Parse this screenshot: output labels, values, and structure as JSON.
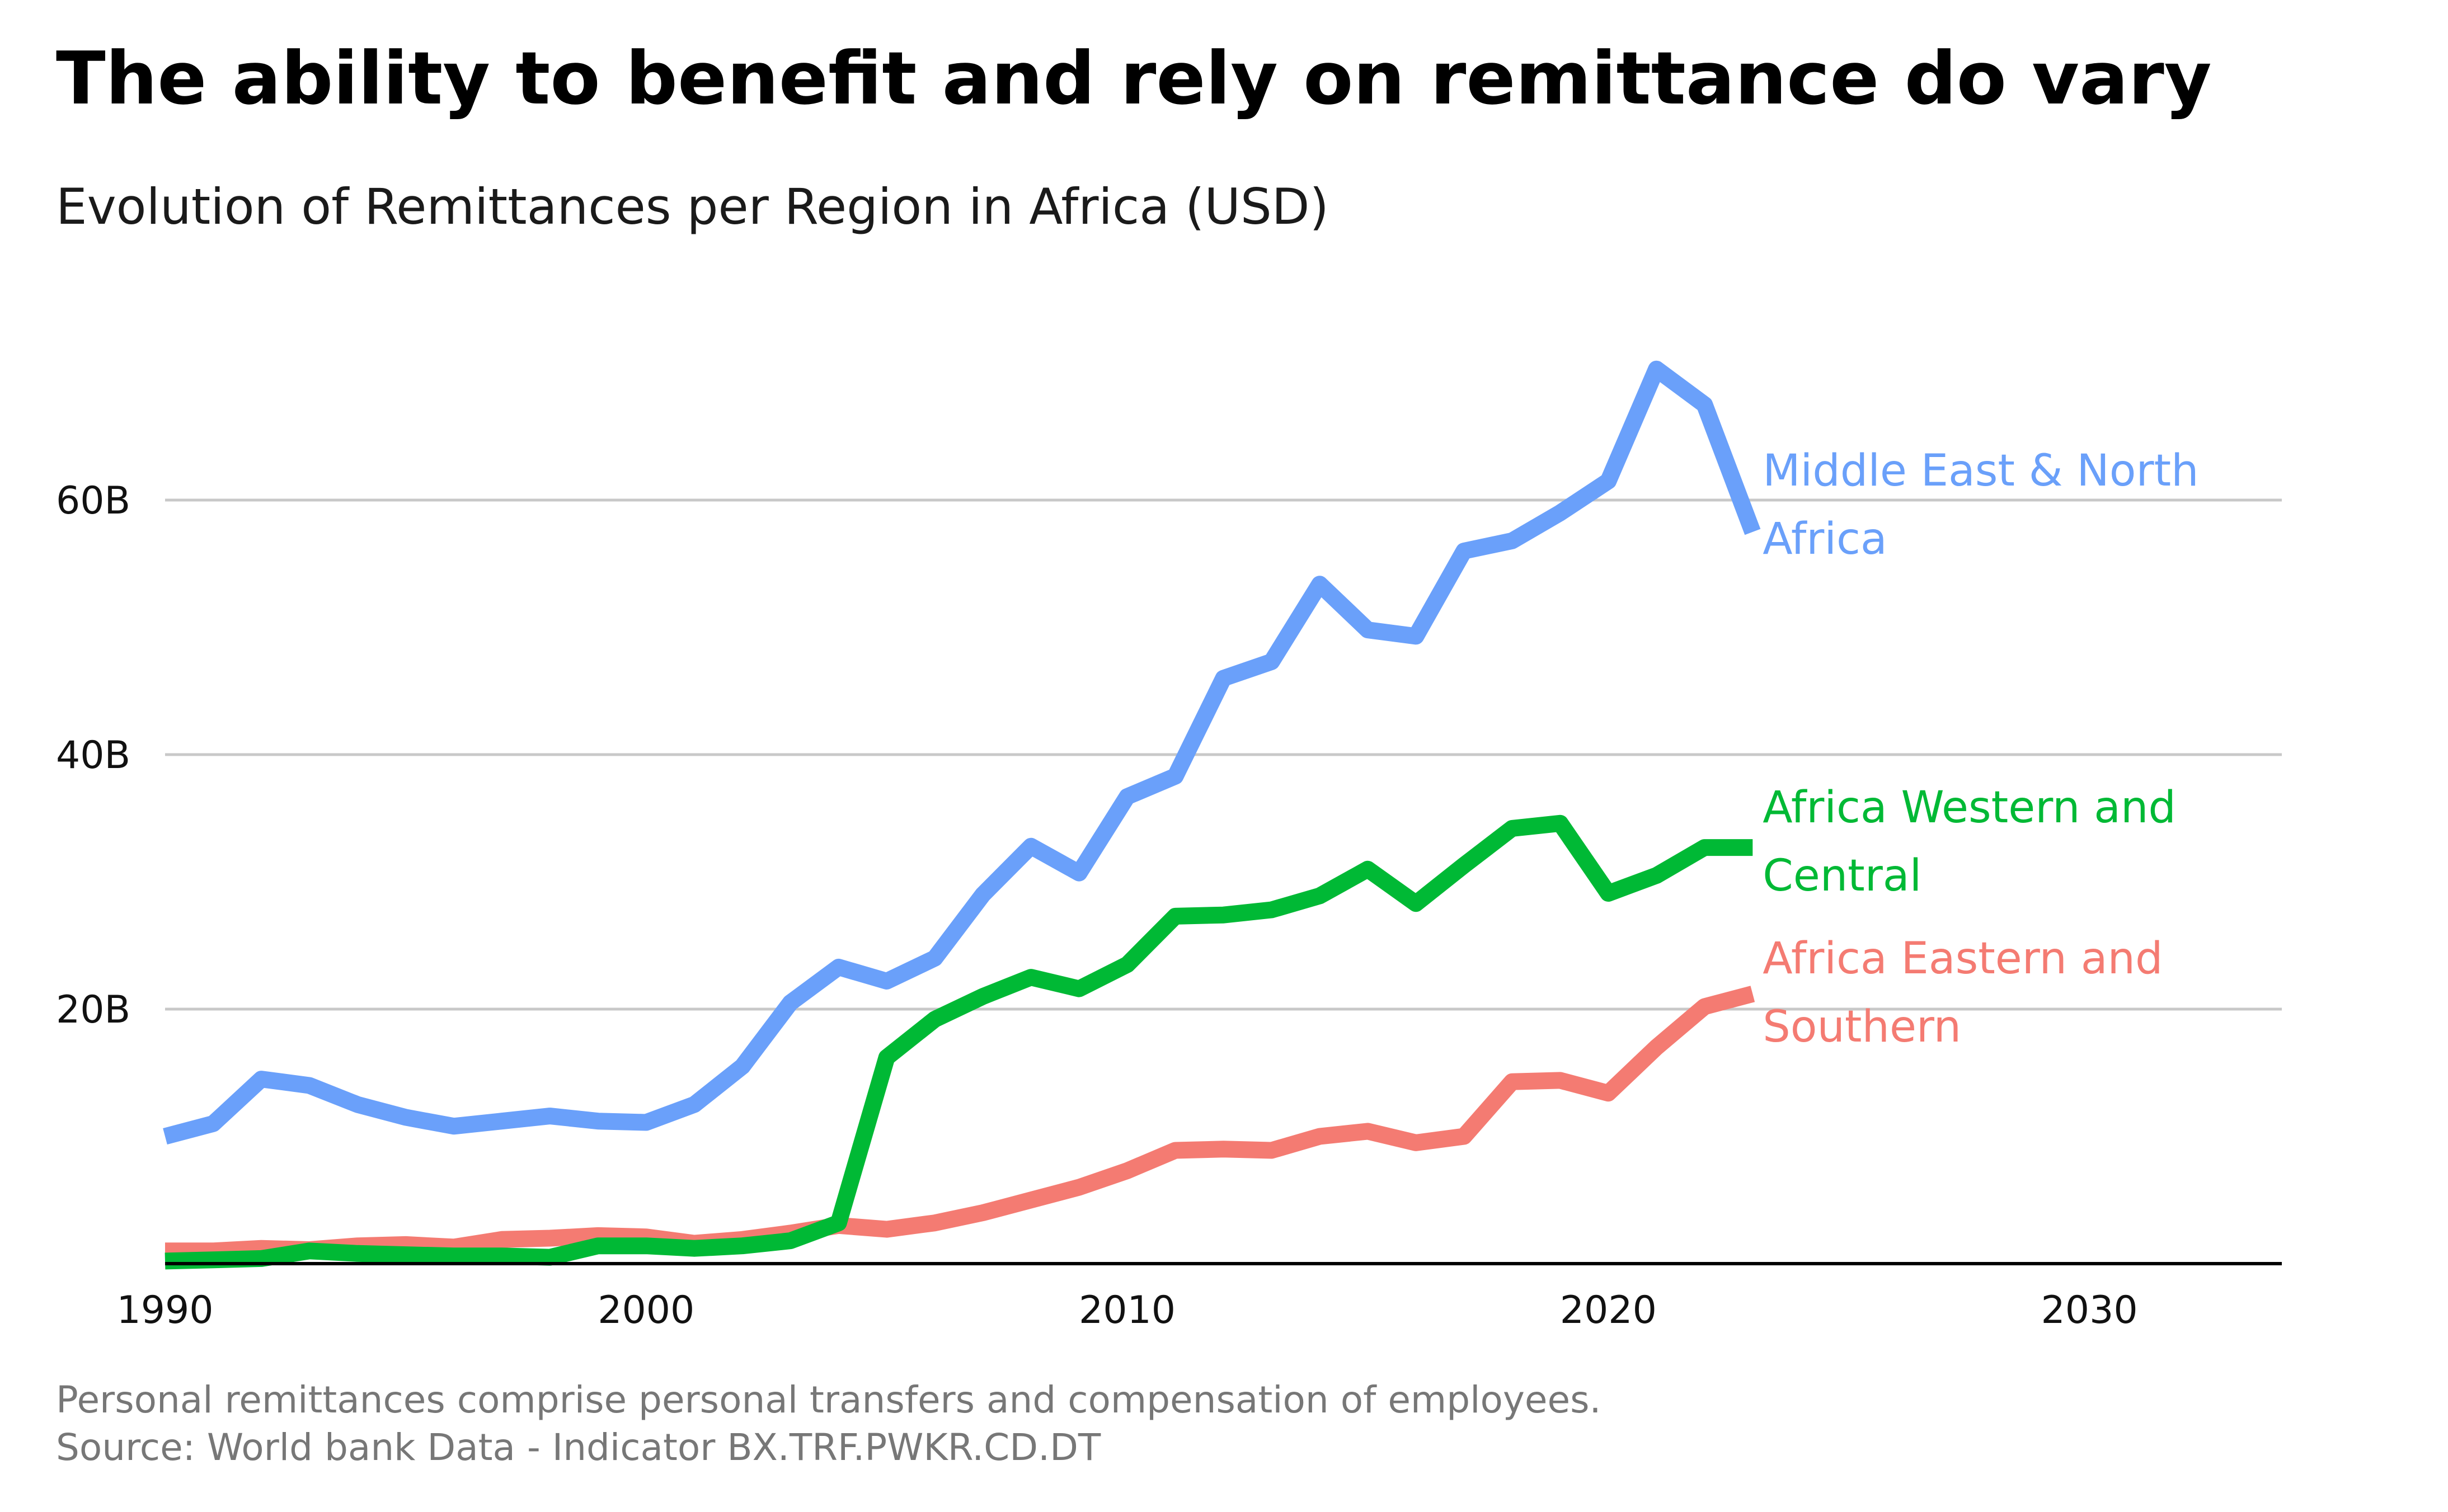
{
  "chart_data": {
    "type": "line",
    "title": "The ability to benefit and rely on remittance do vary",
    "subtitle": "Evolution of Remittances per Region in Africa (USD)",
    "xlabel": "",
    "ylabel": "",
    "xlim": [
      1990,
      2034
    ],
    "ylim": [
      0,
      76
    ],
    "x_ticks": [
      1990,
      2000,
      2010,
      2020,
      2030
    ],
    "x_tick_labels": [
      "1990",
      "2000",
      "2010",
      "2020",
      "2030"
    ],
    "y_ticks": [
      20,
      40,
      60
    ],
    "y_tick_labels": [
      "20B",
      "40B",
      "60B"
    ],
    "grid": true,
    "legend": "direct-labels-right",
    "value_unit": "billion USD",
    "x": [
      1990,
      1991,
      1992,
      1993,
      1994,
      1995,
      1996,
      1997,
      1998,
      1999,
      2000,
      2001,
      2002,
      2003,
      2004,
      2005,
      2006,
      2007,
      2008,
      2009,
      2010,
      2011,
      2012,
      2013,
      2014,
      2015,
      2016,
      2017,
      2018,
      2019,
      2020,
      2021,
      2022,
      2023
    ],
    "series": [
      {
        "name": "Middle East & North Africa",
        "label_lines": [
          "Middle East & North",
          "Africa"
        ],
        "color": "#6aa0fa",
        "values": [
          10.0,
          11.0,
          14.5,
          14.0,
          12.5,
          11.5,
          10.8,
          11.2,
          11.6,
          11.2,
          11.1,
          12.5,
          15.5,
          20.5,
          23.3,
          22.2,
          24.0,
          29.0,
          32.8,
          30.7,
          36.7,
          38.3,
          46.0,
          47.3,
          53.4,
          49.8,
          49.3,
          56.0,
          56.8,
          59.0,
          61.5,
          70.3,
          67.5,
          57.5
        ]
      },
      {
        "name": "Africa Western and Central",
        "label_lines": [
          "Africa Western and",
          "Central"
        ],
        "color": "#00b935",
        "values": [
          0.2,
          0.3,
          0.4,
          1.0,
          0.8,
          0.7,
          0.6,
          0.6,
          0.5,
          1.4,
          1.4,
          1.2,
          1.4,
          1.8,
          3.2,
          16.2,
          19.2,
          21.0,
          22.5,
          21.6,
          23.5,
          27.3,
          27.4,
          27.8,
          28.9,
          31.0,
          28.3,
          31.3,
          34.2,
          34.6,
          29.1,
          30.5,
          32.7,
          32.7
        ]
      },
      {
        "name": "Africa Eastern and Southern",
        "label_lines": [
          "Africa Eastern and",
          "Southern"
        ],
        "color": "#f47b72",
        "values": [
          1.0,
          1.0,
          1.2,
          1.1,
          1.4,
          1.5,
          1.3,
          1.9,
          2.0,
          2.2,
          2.1,
          1.6,
          1.9,
          2.4,
          3.0,
          2.7,
          3.2,
          4.0,
          5.0,
          6.0,
          7.3,
          8.9,
          9.0,
          8.9,
          10.0,
          10.4,
          9.5,
          10.0,
          14.3,
          14.4,
          13.4,
          17.0,
          20.2,
          21.2
        ]
      }
    ],
    "notes": [
      "Personal remittances comprise personal transfers and compensation of employees.",
      "Source: World bank Data - Indicator BX.TRF.PWKR.CD.DT"
    ]
  }
}
